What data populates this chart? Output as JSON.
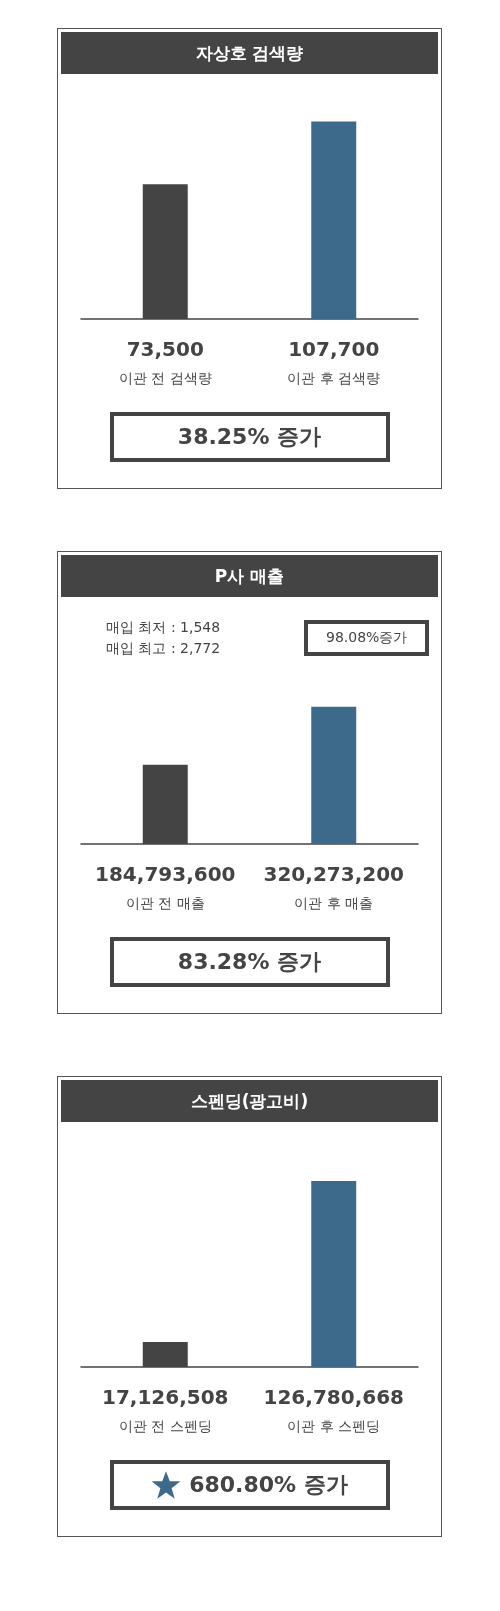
{
  "chart_data": [
    {
      "type": "bar",
      "title": "자상호 검색량",
      "categories": [
        "이관 전 검색량",
        "이관 후 검색량"
      ],
      "values": [
        73500,
        107700
      ],
      "colors": [
        "#444444",
        "#3d6a8a"
      ],
      "value_labels": [
        "73,500",
        "107,700"
      ],
      "annotations": [
        "38.25% 증가"
      ]
    },
    {
      "type": "bar",
      "title": "P사 매출",
      "categories": [
        "이관 전 매출",
        "이관 후 매출"
      ],
      "values": [
        184793600,
        320273200
      ],
      "colors": [
        "#444444",
        "#3d6a8a"
      ],
      "value_labels": [
        "184,793,600",
        "320,273,200"
      ],
      "annotations": [
        "매입 최저 : 1,548",
        "매입 최고 : 2,772",
        "98.08%증가",
        "83.28% 증가"
      ]
    },
    {
      "type": "bar",
      "title": "스펜딩(광고비)",
      "categories": [
        "이관 전 스펜딩",
        "이관 후 스펜딩"
      ],
      "values": [
        17126508,
        126780668
      ],
      "colors": [
        "#444444",
        "#3d6a8a"
      ],
      "value_labels": [
        "17,126,508",
        "126,780,668"
      ],
      "annotations": [
        "680.80% 증가"
      ]
    }
  ]
}
